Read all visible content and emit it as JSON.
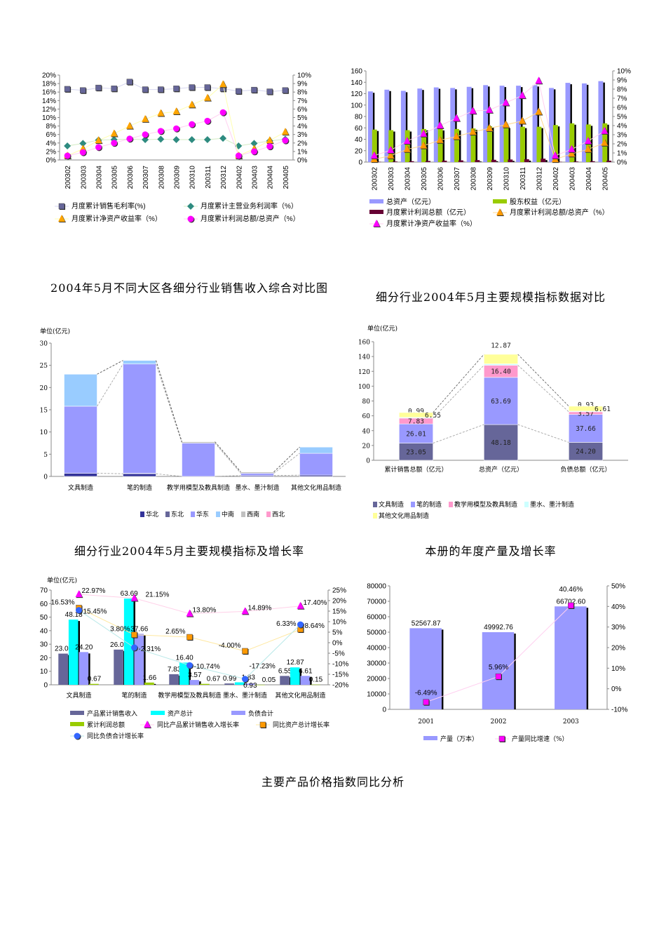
{
  "titles": {
    "region_chart": "2004年5月不同大区各细分行业销售收入综合对比图",
    "scale_chart": "细分行业2004年5月主要规模指标数据对比",
    "growth_chart": "细分行业2004年5月主要规模指标及增长率",
    "production_chart": "本册的年度产量及增长率",
    "price_section": "主要产品价格指数同比分析"
  },
  "chart_data": [
    {
      "type": "line",
      "categories": [
        "200302",
        "200303",
        "200304",
        "200305",
        "200306",
        "200307",
        "200308",
        "200309",
        "200310",
        "200311",
        "200312",
        "200402",
        "200403",
        "200404",
        "200405"
      ],
      "left_axis": {
        "min": 0,
        "max": 20,
        "ticks": [
          "0%",
          "2%",
          "4%",
          "6%",
          "8%",
          "10%",
          "12%",
          "14%",
          "16%",
          "18%",
          "20%"
        ]
      },
      "right_axis": {
        "min": 0,
        "max": 10,
        "ticks": [
          "0%",
          "1%",
          "2%",
          "3%",
          "4%",
          "5%",
          "6%",
          "7%",
          "8%",
          "9%",
          "10%"
        ]
      },
      "legend_placement": "bottom",
      "series": [
        {
          "name": "月度累计销售毛利率(%)",
          "kind": "line",
          "axis": "left",
          "marker": "square",
          "color": "#666699",
          "line_color": "#d6d6f0",
          "values": [
            16.7,
            16.4,
            17.0,
            16.8,
            18.4,
            16.6,
            16.6,
            16.8,
            17.1,
            17.1,
            16.8,
            16.2,
            16.5,
            16.1,
            16.4
          ]
        },
        {
          "name": "月度累计主营业务利润率（%）",
          "kind": "line",
          "axis": "left",
          "marker": "diamond",
          "color": "#2e8b80",
          "line_color": "#d4ecc4",
          "values": [
            3.3,
            3.9,
            4.7,
            4.8,
            4.9,
            4.8,
            4.9,
            4.8,
            4.8,
            4.8,
            5.1,
            3.3,
            3.9,
            4.5,
            4.9
          ]
        },
        {
          "name": "月度累计净资产收益率（%）",
          "kind": "line",
          "axis": "right",
          "marker": "triangle",
          "color": "#ffa500",
          "line_color": "#ffffb0",
          "values": [
            0.5,
            1.3,
            2.3,
            3.1,
            4.0,
            4.8,
            5.5,
            5.7,
            6.5,
            7.3,
            8.9,
            0.5,
            1.3,
            2.3,
            3.3
          ]
        },
        {
          "name": "月度累计利润总额/总资产（%）",
          "kind": "line",
          "axis": "right",
          "marker": "circle",
          "color": "#ff00ff",
          "line_color": "#ffd0f0",
          "values": [
            0.5,
            0.9,
            1.5,
            2.0,
            2.5,
            3.0,
            3.4,
            3.7,
            4.2,
            4.6,
            5.6,
            0.5,
            1.0,
            1.6,
            2.3
          ]
        }
      ]
    },
    {
      "type": "bar",
      "categories": [
        "200302",
        "200303",
        "200304",
        "200305",
        "200306",
        "200307",
        "200308",
        "200309",
        "200310",
        "200311",
        "200312",
        "200402",
        "200403",
        "200404",
        "200405"
      ],
      "left_axis": {
        "min": 0,
        "max": 160,
        "ticks": [
          "0",
          "20",
          "40",
          "60",
          "80",
          "100",
          "120",
          "140",
          "160"
        ]
      },
      "right_axis": {
        "min": 0,
        "max": 10,
        "ticks": [
          "0%",
          "1%",
          "2%",
          "3%",
          "4%",
          "5%",
          "6%",
          "7%",
          "8%",
          "9%",
          "10%"
        ]
      },
      "legend_placement": "bottom",
      "series": [
        {
          "name": "总资产（亿元）",
          "kind": "bar",
          "axis": "left",
          "color": "#9999ff",
          "values": [
            124,
            127,
            125,
            129,
            131,
            130,
            132,
            135,
            134,
            134,
            135,
            130,
            139,
            138,
            142
          ]
        },
        {
          "name": "股东权益（亿元）",
          "kind": "bar",
          "axis": "left",
          "color": "#99cc00",
          "values": [
            57,
            56,
            56,
            58,
            58,
            58,
            59,
            63,
            62,
            62,
            62,
            65,
            68,
            66,
            68
          ]
        },
        {
          "name": "月度累计利润总额（亿元）",
          "kind": "bar",
          "axis": "left",
          "color": "#660033",
          "values": [
            0.5,
            1,
            1.5,
            2,
            2.5,
            3,
            3.5,
            4,
            4.5,
            5,
            6,
            0.5,
            1,
            1.5,
            2.5
          ]
        },
        {
          "name": "月度累计利润总额/总资产（%）",
          "kind": "line",
          "axis": "right",
          "marker": "triangle",
          "color": "#ff9900",
          "line_color": "#ffd890",
          "values": [
            0.3,
            0.7,
            1.4,
            1.8,
            2.4,
            2.8,
            3.3,
            3.7,
            4.1,
            4.5,
            5.5,
            0.3,
            0.9,
            1.4,
            2.1
          ]
        },
        {
          "name": "月度累计净资产收益率（%）",
          "kind": "line",
          "axis": "right",
          "marker": "triangle",
          "color": "#ff00ff",
          "line_color": "#ffd0ee",
          "values": [
            0.7,
            1.3,
            2.3,
            3.1,
            4.0,
            4.8,
            5.6,
            5.7,
            6.5,
            7.3,
            8.9,
            0.7,
            1.4,
            2.3,
            3.4
          ]
        }
      ]
    },
    {
      "type": "bar",
      "stacked": true,
      "title": "2004年5月不同大区各细分行业销售收入综合对比图",
      "unit_label": "单位(亿元)",
      "categories": [
        "文具制造",
        "笔的制造",
        "教学用模型及教具制造",
        "墨水、墨汁制造",
        "其他文化用品制造"
      ],
      "left_axis": {
        "min": 0,
        "max": 30,
        "ticks": [
          "0",
          "5",
          "10",
          "15",
          "20",
          "25",
          "30"
        ]
      },
      "legend_placement": "bottom",
      "series": [
        {
          "name": "华北",
          "kind": "stack",
          "axis": "left",
          "color": "#333399",
          "values": [
            0.7,
            0.6,
            0,
            0.2,
            0.3
          ]
        },
        {
          "name": "东北",
          "kind": "stack",
          "axis": "left",
          "color": "#666699",
          "values": [
            0,
            0.1,
            0,
            0,
            0
          ]
        },
        {
          "name": "华东",
          "kind": "stack",
          "axis": "left",
          "color": "#9999ff",
          "values": [
            15.1,
            24.6,
            7.5,
            0.5,
            4.9
          ]
        },
        {
          "name": "中南",
          "kind": "stack",
          "axis": "left",
          "color": "#99ccff",
          "values": [
            7.2,
            0.8,
            0,
            0,
            1.4
          ]
        },
        {
          "name": "西南",
          "kind": "stack",
          "axis": "left",
          "color": "#c0c0c0",
          "values": [
            0,
            0,
            0.3,
            0.3,
            0
          ]
        },
        {
          "name": "西北",
          "kind": "stack",
          "axis": "left",
          "color": "#ff99cc",
          "values": [
            0,
            0,
            0,
            0,
            0
          ]
        }
      ]
    },
    {
      "type": "bar",
      "stacked": true,
      "title": "细分行业2004年5月主要规模指标数据对比",
      "unit_label": "单位(亿元)",
      "categories": [
        "累计销售总额（亿元）",
        "总资产（亿元）",
        "负债总额（亿元）"
      ],
      "left_axis": {
        "min": 0,
        "max": 160,
        "ticks": [
          "0",
          "20",
          "40",
          "60",
          "80",
          "100",
          "120",
          "140",
          "160"
        ]
      },
      "legend_placement": "bottom",
      "series": [
        {
          "name": "文具制造",
          "kind": "stack",
          "axis": "left",
          "color": "#666699",
          "values": [
            23.05,
            48.18,
            24.2
          ],
          "labels": [
            "23.05",
            "48.18",
            "24.20"
          ]
        },
        {
          "name": "笔的制造",
          "kind": "stack",
          "axis": "left",
          "color": "#9999ff",
          "values": [
            26.01,
            63.69,
            37.66
          ],
          "labels": [
            "26.01",
            "63.69",
            "37.66"
          ]
        },
        {
          "name": "教学用模型及教具制造",
          "kind": "stack",
          "axis": "left",
          "color": "#ff99cc",
          "values": [
            7.83,
            16.4,
            3.57
          ],
          "labels": [
            "7.83",
            "16.40",
            "3.57"
          ]
        },
        {
          "name": "墨水、墨汁制造",
          "kind": "stack",
          "axis": "left",
          "color": "#ccffff",
          "values": [
            0.99,
            1.83,
            0.93
          ],
          "labels": [
            "0.99",
            "1.83",
            "0.93"
          ]
        },
        {
          "name": "其他文化用品制造",
          "kind": "stack",
          "axis": "left",
          "color": "#ffff99",
          "values": [
            6.55,
            12.87,
            6.61
          ],
          "labels": [
            "6.55",
            "12.87",
            "6.61"
          ]
        }
      ]
    },
    {
      "type": "bar",
      "title": "细分行业2004年5月主要规模指标及增长率",
      "unit_label": "单位(亿元)",
      "categories": [
        "文具制造",
        "笔的制造",
        "教学用模型及教具制造",
        "墨水、墨汁制造",
        "其他文化用品制造"
      ],
      "left_axis": {
        "min": 0,
        "max": 70,
        "ticks": [
          "0",
          "10",
          "20",
          "30",
          "40",
          "50",
          "60",
          "70"
        ]
      },
      "right_axis": {
        "min": -20,
        "max": 25,
        "ticks": [
          "-20%",
          "-15%",
          "-10%",
          "-5%",
          "0%",
          "5%",
          "10%",
          "15%",
          "20%",
          "25%"
        ]
      },
      "legend_placement": "bottom",
      "series": [
        {
          "name": "产品累计销售收入",
          "kind": "bar",
          "axis": "left",
          "color": "#666699",
          "values": [
            23.05,
            26.01,
            7.83,
            0.99,
            6.55
          ],
          "labels": [
            "23.05",
            "26.01",
            "7.83",
            "0.99",
            "6.55"
          ]
        },
        {
          "name": "资产总计",
          "kind": "bar",
          "axis": "left",
          "color": "#00ffff",
          "values": [
            48.18,
            63.69,
            16.4,
            1.83,
            12.87
          ],
          "labels": [
            "48.18",
            "63.69",
            "16.40",
            "1.83",
            "12.87"
          ]
        },
        {
          "name": "负债合计",
          "kind": "bar",
          "axis": "left",
          "color": "#9999ff",
          "values": [
            24.2,
            37.66,
            3.57,
            0.93,
            6.61
          ],
          "labels": [
            "24.20",
            "37.66",
            "3.57",
            "0.93",
            "6.61"
          ]
        },
        {
          "name": "累计利润总额",
          "kind": "bar",
          "axis": "left",
          "color": "#99cc00",
          "values": [
            0.67,
            1.66,
            0.67,
            0.05,
            0.15
          ],
          "labels": [
            "0.67",
            "1.66",
            "0.67",
            "0.05",
            "0.15"
          ]
        },
        {
          "name": "同比产品累计销售收入增长率",
          "kind": "line",
          "axis": "right",
          "marker": "triangle",
          "color": "#ff00ff",
          "line_color": "#ffd0e8",
          "values": [
            22.97,
            21.15,
            13.8,
            14.89,
            17.4
          ],
          "labels": [
            "22.97%",
            "21.15%",
            "13.80%",
            "14.89%",
            "17.40%"
          ]
        },
        {
          "name": "同比资产总计增长率",
          "kind": "line",
          "axis": "right",
          "marker": "square",
          "color": "#ff9900",
          "line_color": "#ffe8a0",
          "values": [
            16.53,
            3.8,
            2.65,
            -4.0,
            6.33
          ],
          "labels": [
            "16.53%",
            "3.80%",
            "2.65%",
            "-4.00%",
            "6.33%"
          ]
        },
        {
          "name": "同比负债合计增长率",
          "kind": "line",
          "axis": "right",
          "marker": "circle",
          "color": "#3366ff",
          "line_color": "#b8e8e8",
          "values": [
            15.45,
            -2.31,
            -10.74,
            -17.23,
            8.64
          ],
          "labels": [
            "15.45%",
            "-2.31%",
            "-10.74%",
            "-17.23%",
            "8.64%"
          ]
        }
      ]
    },
    {
      "type": "bar",
      "title": "本册的年度产量及增长率",
      "categories": [
        "2001",
        "2002",
        "2003"
      ],
      "left_axis": {
        "min": 0,
        "max": 80000,
        "ticks": [
          "0",
          "10000",
          "20000",
          "30000",
          "40000",
          "50000",
          "60000",
          "70000",
          "80000"
        ]
      },
      "right_axis": {
        "min": -10,
        "max": 50,
        "ticks": [
          "-10%",
          "0%",
          "10%",
          "20%",
          "30%",
          "40%",
          "50%"
        ]
      },
      "legend_placement": "bottom",
      "series": [
        {
          "name": "产量（万本）",
          "kind": "bar",
          "axis": "left",
          "color": "#9999ff",
          "values": [
            52567.87,
            49992.76,
            66702.6
          ],
          "labels": [
            "52567.87",
            "49992.76",
            "66702.60"
          ]
        },
        {
          "name": "产量同比增速（%）",
          "kind": "line",
          "axis": "right",
          "marker": "square",
          "color": "#ff00ff",
          "line_color": "#ffd0f0",
          "values": [
            -6.49,
            5.96,
            40.46
          ],
          "labels": [
            "-6.49%",
            "5.96%",
            "40.46%"
          ]
        }
      ]
    }
  ]
}
